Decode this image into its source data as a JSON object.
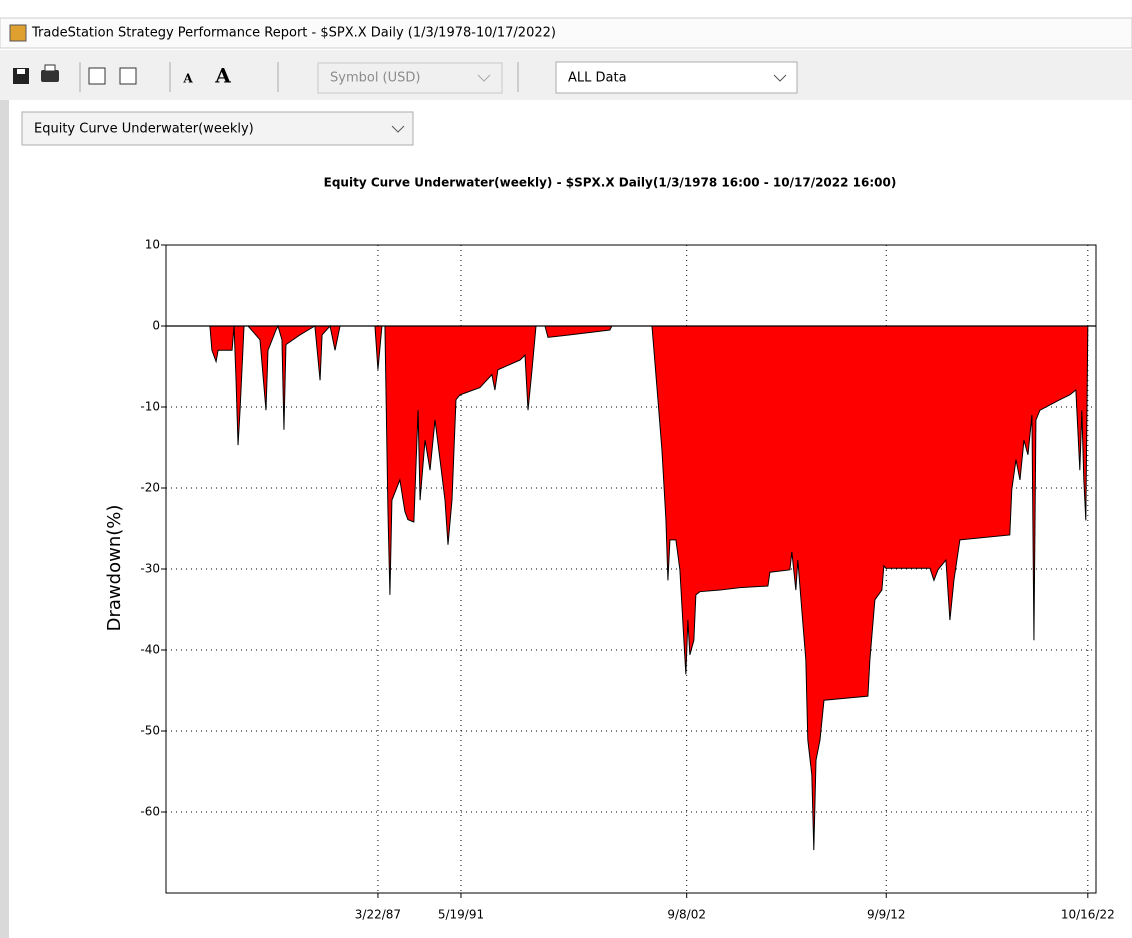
{
  "window": {
    "title": "TradeStation Strategy Performance Report - $SPX.X Daily (1/3/1978-10/17/2022)"
  },
  "toolbar": {
    "font_buttons": [
      "A",
      "A"
    ],
    "symbol": "Symbol (USD)",
    "range": "ALL Data"
  },
  "view_select": "Equity Curve Underwater(weekly)",
  "chart_data": {
    "type": "area",
    "title": "Equity Curve Underwater(weekly) - $SPX.X Daily(1/3/1978 16:00 - 10/17/2022 16:00)",
    "ylabel": "Drawdown(%)",
    "color": "#ff0000",
    "line_color": "#000000",
    "grid": true,
    "xlim": [
      1976.6,
      2023.2
    ],
    "ylim": [
      -70,
      10
    ],
    "xticks": [
      {
        "value": 1987.22,
        "label": "3/22/87"
      },
      {
        "value": 1991.38,
        "label": "5/19/91"
      },
      {
        "value": 2002.69,
        "label": "9/8/02"
      },
      {
        "value": 2012.69,
        "label": "9/9/12"
      },
      {
        "value": 2022.79,
        "label": "10/16/22"
      }
    ],
    "yticks": [
      10,
      0,
      -10,
      -20,
      -30,
      -40,
      -50,
      -60
    ],
    "x": [
      1978.8,
      1978.9,
      1979.11,
      1979.21,
      1979.41,
      1979.91,
      1980.01,
      1980.11,
      1980.21,
      1980.31,
      1980.51,
      1980.71,
      1981.31,
      1981.61,
      1981.71,
      1982.11,
      1982.21,
      1982.41,
      1982.51,
      1982.61,
      1983.31,
      1984.06,
      1984.32,
      1984.42,
      1984.82,
      1985.07,
      1985.32,
      1987.07,
      1987.22,
      1987.42,
      1987.57,
      1987.72,
      1987.82,
      1987.92,
      1988.32,
      1988.57,
      1988.72,
      1989.02,
      1989.23,
      1989.33,
      1989.58,
      1989.83,
      1990.08,
      1990.33,
      1990.58,
      1990.73,
      1990.93,
      1991.13,
      1991.33,
      1992.33,
      1992.93,
      1993.08,
      1993.23,
      1994.34,
      1994.59,
      1994.74,
      1994.94,
      1995.14,
      1995.59,
      1995.74,
      1996.84,
      1998.84,
      1998.94,
      2000.95,
      2001.05,
      2001.25,
      2001.45,
      2001.65,
      2001.75,
      2001.85,
      2002.15,
      2002.35,
      2002.55,
      2002.65,
      2002.75,
      2002.85,
      2003.05,
      2003.15,
      2003.35,
      2004.36,
      2005.36,
      2006.76,
      2006.86,
      2007.86,
      2007.96,
      2008.16,
      2008.26,
      2008.46,
      2008.66,
      2008.76,
      2008.96,
      2009.06,
      2009.17,
      2009.37,
      2009.57,
      2011.77,
      2011.87,
      2012.12,
      2012.47,
      2012.57,
      2012.67,
      2014.88,
      2015.08,
      2015.28,
      2015.68,
      2015.88,
      2016.08,
      2016.38,
      2018.88,
      2018.98,
      2019.19,
      2019.39,
      2019.59,
      2019.79,
      2019.99,
      2020.09,
      2020.19,
      2020.39,
      2021.39,
      2021.89,
      2022.19,
      2022.29,
      2022.39,
      2022.49,
      2022.59,
      2022.69,
      2022.79
    ],
    "values": [
      0,
      -3.0,
      -4.4,
      -3.0,
      -3.0,
      -3.0,
      0,
      -6.7,
      -14.7,
      -10.4,
      0,
      0,
      -1.7,
      -10.4,
      -3.0,
      -0.5,
      0,
      -1.7,
      -12.8,
      -2.3,
      -1.1,
      0,
      -6.7,
      -1.1,
      0,
      -3.0,
      0,
      0,
      -5.4,
      0,
      0,
      -22.7,
      -33.2,
      -21.5,
      -19.0,
      -22.9,
      -23.9,
      -24.2,
      -10.4,
      -21.5,
      -14.1,
      -17.8,
      -11.6,
      -16.5,
      -21.5,
      -27.0,
      -21.5,
      -9.1,
      -8.5,
      -7.6,
      -6.0,
      -7.9,
      -5.4,
      -4.2,
      -3.6,
      -10.4,
      -5.4,
      0,
      0,
      -1.4,
      -1.1,
      -0.5,
      0,
      0,
      -3.0,
      -9.1,
      -15.3,
      -23.9,
      -31.4,
      -26.4,
      -26.4,
      -30.1,
      -38.8,
      -43.0,
      -36.3,
      -40.6,
      -38.8,
      -33.2,
      -32.8,
      -32.6,
      -32.3,
      -32.1,
      -30.4,
      -30.1,
      -27.9,
      -32.6,
      -28.9,
      -35.1,
      -41.2,
      -51.1,
      -55.4,
      -64.7,
      -53.6,
      -51.1,
      -46.2,
      -45.7,
      -41.2,
      -33.8,
      -32.6,
      -29.6,
      -29.9,
      -29.9,
      -31.4,
      -30.1,
      -28.9,
      -36.3,
      -31.4,
      -26.4,
      -25.8,
      -20.2,
      -16.5,
      -19.0,
      -14.1,
      -15.9,
      -11.0,
      -38.8,
      -11.6,
      -10.4,
      -9.1,
      -8.5,
      -7.9,
      -12.8,
      -17.8,
      -10.4,
      -19.0,
      -24.0,
      0
    ]
  }
}
